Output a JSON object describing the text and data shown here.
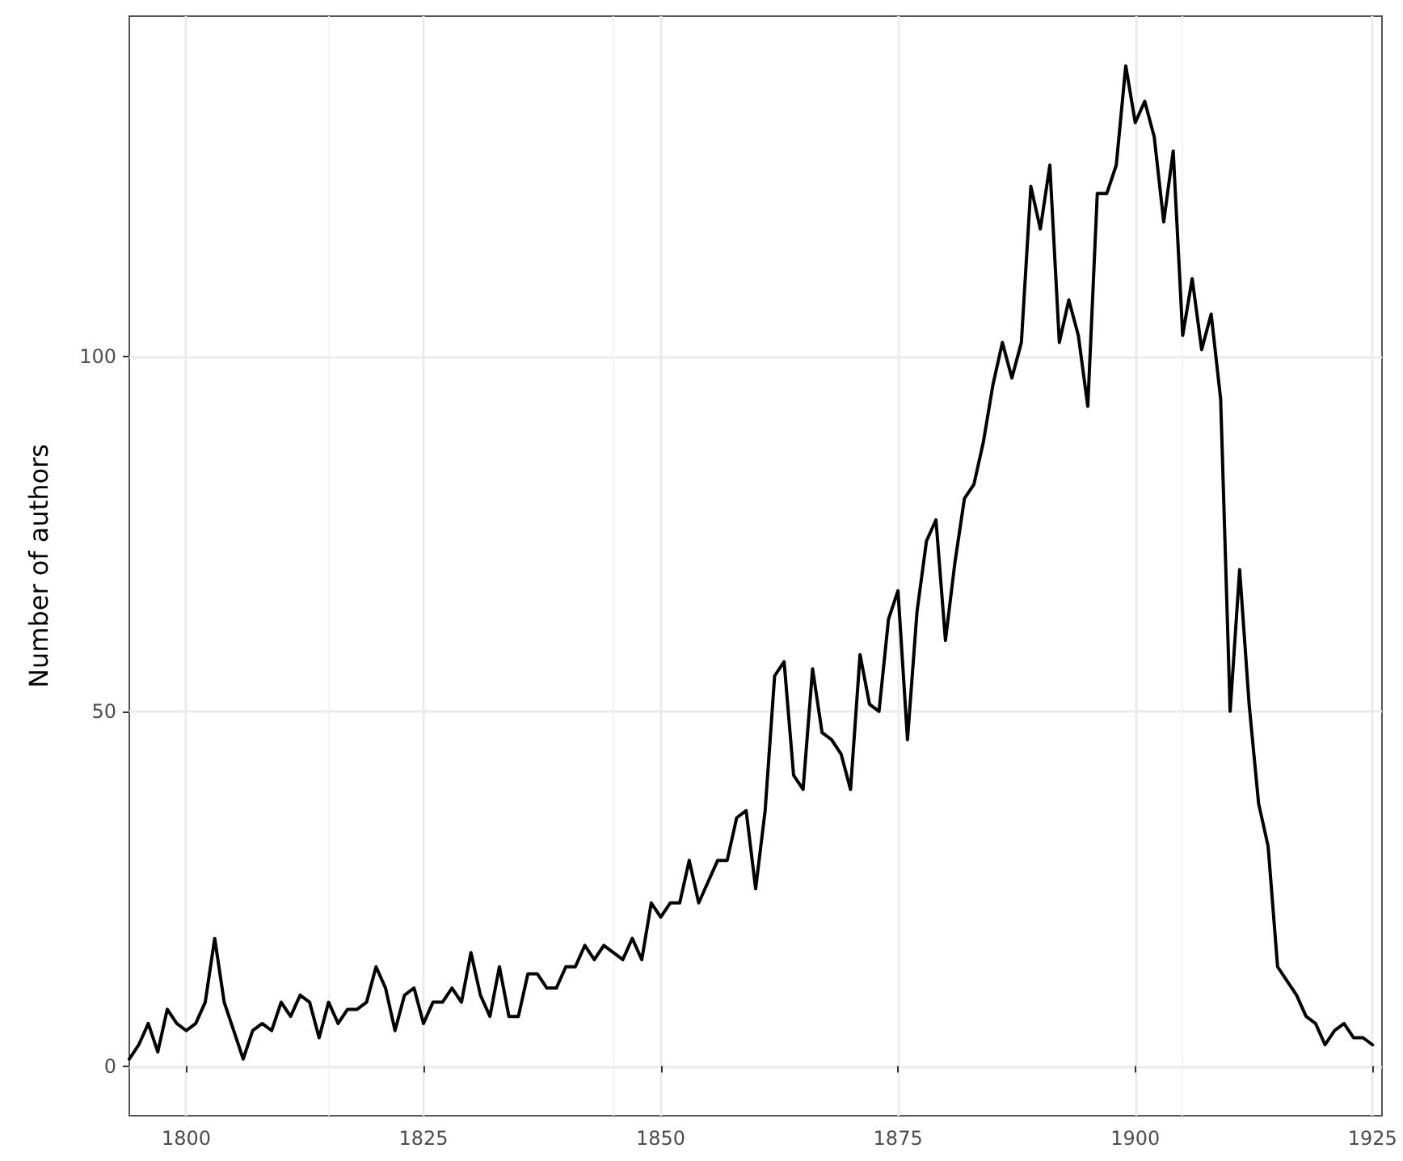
{
  "chart_data": {
    "type": "line",
    "ylabel": "Number of authors",
    "x": [
      1794,
      1795,
      1796,
      1797,
      1798,
      1799,
      1800,
      1801,
      1802,
      1803,
      1804,
      1805,
      1806,
      1807,
      1808,
      1809,
      1810,
      1811,
      1812,
      1813,
      1814,
      1815,
      1816,
      1817,
      1818,
      1819,
      1820,
      1821,
      1822,
      1823,
      1824,
      1825,
      1826,
      1827,
      1828,
      1829,
      1830,
      1831,
      1832,
      1833,
      1834,
      1835,
      1836,
      1837,
      1838,
      1839,
      1840,
      1841,
      1842,
      1843,
      1844,
      1845,
      1846,
      1847,
      1848,
      1849,
      1850,
      1851,
      1852,
      1853,
      1854,
      1855,
      1856,
      1857,
      1858,
      1859,
      1860,
      1861,
      1862,
      1863,
      1864,
      1865,
      1866,
      1867,
      1868,
      1869,
      1870,
      1871,
      1872,
      1873,
      1874,
      1875,
      1876,
      1877,
      1878,
      1879,
      1880,
      1881,
      1882,
      1883,
      1884,
      1885,
      1886,
      1887,
      1888,
      1889,
      1890,
      1891,
      1892,
      1893,
      1894,
      1895,
      1896,
      1897,
      1898,
      1899,
      1900,
      1901,
      1902,
      1903,
      1904,
      1905,
      1906,
      1907,
      1908,
      1909,
      1910,
      1911,
      1912,
      1913,
      1914,
      1915,
      1916,
      1917,
      1918,
      1919,
      1920,
      1921,
      1922,
      1923,
      1924,
      1925
    ],
    "series": [
      {
        "color": "#000000",
        "values": [
          1,
          3,
          6,
          2,
          8,
          6,
          5,
          6,
          9,
          18,
          9,
          5,
          1,
          5,
          6,
          5,
          9,
          7,
          10,
          9,
          4,
          9,
          6,
          8,
          8,
          9,
          14,
          11,
          5,
          10,
          11,
          6,
          9,
          9,
          11,
          9,
          16,
          10,
          7,
          14,
          7,
          7,
          13,
          13,
          11,
          11,
          14,
          14,
          17,
          15,
          17,
          16,
          15,
          18,
          15,
          23,
          21,
          23,
          23,
          29,
          23,
          26,
          29,
          29,
          35,
          36,
          25,
          36,
          55,
          57,
          41,
          39,
          56,
          47,
          46,
          44,
          39,
          58,
          51,
          50,
          63,
          67,
          46,
          64,
          74,
          77,
          60,
          71,
          80,
          82,
          88,
          96,
          102,
          97,
          102,
          124,
          118,
          127,
          102,
          108,
          103,
          93,
          123,
          123,
          127,
          141,
          133,
          136,
          131,
          119,
          129,
          103,
          111,
          101,
          106,
          94,
          50,
          70,
          51,
          37,
          31,
          14,
          12,
          10,
          7,
          6,
          3,
          5,
          6,
          4,
          4,
          3
        ]
      }
    ],
    "xlim": [
      1794,
      1926
    ],
    "xticks": [
      1800,
      1825,
      1850,
      1875,
      1900,
      1925
    ],
    "ylim": [
      -7,
      148
    ],
    "yticks": [
      0,
      50,
      100
    ],
    "grid": true,
    "marker": "none",
    "line_style": "solid"
  }
}
